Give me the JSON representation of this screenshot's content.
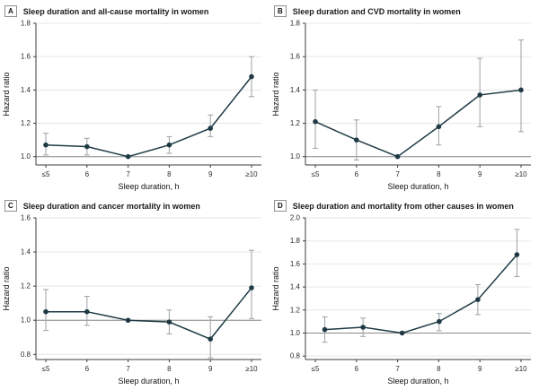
{
  "colors": {
    "series": "#1f3a45",
    "error_bar": "#9ba1a6",
    "grid": "#e7e7e7",
    "reference": "#8a8a8a",
    "axis": "#3c3c3c"
  },
  "chart_data": [
    {
      "type": "line",
      "label": "A",
      "title": "Sleep duration and all-cause mortality in women",
      "categories": [
        "≤5",
        "6",
        "7",
        "8",
        "9",
        "≥10"
      ],
      "xtick_positions": [
        5,
        6,
        7,
        8,
        9,
        10
      ],
      "x": [
        5,
        6,
        7,
        8,
        9,
        10
      ],
      "values": [
        1.07,
        1.06,
        1.0,
        1.07,
        1.17,
        1.48
      ],
      "ci_low": [
        1.01,
        1.01,
        null,
        1.02,
        1.12,
        1.36
      ],
      "ci_high": [
        1.14,
        1.11,
        null,
        1.12,
        1.25,
        1.6
      ],
      "xlabel": "Sleep duration, h",
      "ylabel": "Hazard ratio",
      "yticks": [
        1.0,
        1.2,
        1.4,
        1.6,
        1.8
      ],
      "ylim": [
        0.95,
        1.8
      ],
      "reference_line": 1.0,
      "grid": true,
      "legend": "none"
    },
    {
      "type": "line",
      "label": "B",
      "title": "Sleep duration and CVD mortality in women",
      "categories": [
        "≤5",
        "6",
        "7",
        "8",
        "9",
        "≥10"
      ],
      "xtick_positions": [
        5,
        6,
        7,
        8,
        9,
        10
      ],
      "x": [
        5,
        6,
        7,
        8,
        9,
        10
      ],
      "values": [
        1.21,
        1.1,
        1.0,
        1.18,
        1.37,
        1.4
      ],
      "ci_low": [
        1.05,
        0.98,
        null,
        1.07,
        1.18,
        1.15
      ],
      "ci_high": [
        1.4,
        1.22,
        null,
        1.3,
        1.59,
        1.7
      ],
      "xlabel": "Sleep duration, h",
      "ylabel": "Hazard ratio",
      "yticks": [
        1.0,
        1.2,
        1.4,
        1.6,
        1.8
      ],
      "ylim": [
        0.95,
        1.8
      ],
      "reference_line": 1.0,
      "grid": true,
      "legend": "none"
    },
    {
      "type": "line",
      "label": "C",
      "title": "Sleep duration and cancer mortality in women",
      "categories": [
        "≤5",
        "6",
        "7",
        "8",
        "9",
        "≥10"
      ],
      "xtick_positions": [
        5,
        6,
        7,
        8,
        9,
        10
      ],
      "x": [
        5,
        6,
        7,
        8,
        9,
        10
      ],
      "values": [
        1.05,
        1.05,
        1.0,
        0.99,
        0.89,
        1.19
      ],
      "ci_low": [
        0.94,
        0.97,
        null,
        0.92,
        0.78,
        1.01
      ],
      "ci_high": [
        1.18,
        1.14,
        null,
        1.06,
        1.02,
        1.41
      ],
      "xlabel": "Sleep duration, h",
      "ylabel": "Hazard ratio",
      "yticks": [
        0.8,
        1.0,
        1.2,
        1.4,
        1.6
      ],
      "ylim": [
        0.77,
        1.6
      ],
      "reference_line": 1.0,
      "grid": true,
      "legend": "none"
    },
    {
      "type": "line",
      "label": "D",
      "title": "Sleep duration and mortality from other causes in women",
      "categories": [
        "≤5",
        "6",
        "7",
        "8",
        "9",
        "≥10"
      ],
      "xtick_positions": [
        5,
        6,
        7,
        8,
        9,
        10
      ],
      "x": [
        5.23,
        6.16,
        7.11,
        8.01,
        8.95,
        9.9
      ],
      "values": [
        1.03,
        1.05,
        1.0,
        1.1,
        1.29,
        1.68
      ],
      "ci_low": [
        0.92,
        0.97,
        null,
        1.02,
        1.16,
        1.49
      ],
      "ci_high": [
        1.14,
        1.13,
        null,
        1.17,
        1.42,
        1.9
      ],
      "xlabel": "Sleep duration, h",
      "ylabel": "Hazard ratio",
      "yticks": [
        0.8,
        1.0,
        1.2,
        1.4,
        1.6,
        1.8,
        2.0
      ],
      "ylim": [
        0.77,
        2.0
      ],
      "reference_line": 1.0,
      "grid": true,
      "legend": "none"
    }
  ]
}
